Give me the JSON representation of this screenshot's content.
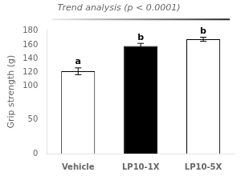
{
  "chart_data": {
    "type": "bar",
    "title": "Trend analysis (p < 0.0001)",
    "categories": [
      "Vehicle",
      "LP10-1X",
      "LP10-5X"
    ],
    "values": [
      121,
      158,
      168
    ],
    "errors": [
      5,
      4,
      3
    ],
    "colors": [
      "white",
      "black",
      "white"
    ],
    "annotations": [
      "a",
      "b",
      "b"
    ],
    "ylabel": "Grip strength (g)",
    "ylim": [
      0,
      182
    ],
    "yticks": [
      0,
      50,
      100,
      120,
      140,
      160,
      180
    ],
    "grid": false
  }
}
